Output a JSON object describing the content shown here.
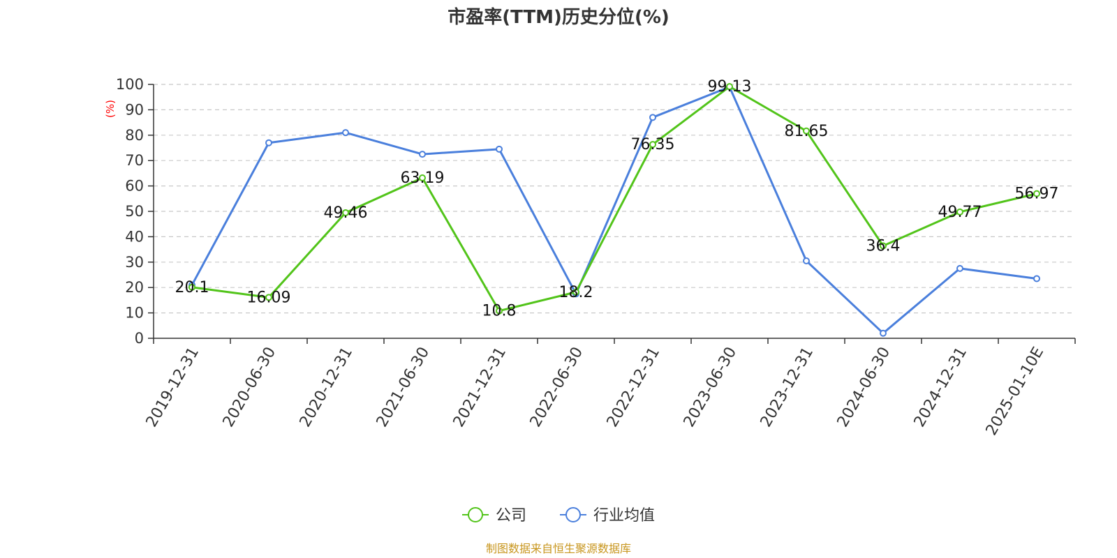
{
  "chart_data": {
    "type": "line",
    "title": "市盈率(TTM)历史分位(%)",
    "xlabel": "",
    "ylabel": "(%)",
    "ylim": [
      0,
      100
    ],
    "yticks": [
      0,
      10,
      20,
      30,
      40,
      50,
      60,
      70,
      80,
      90,
      100
    ],
    "grid": true,
    "legend_position": "bottom-center",
    "categories": [
      "2019-12-31",
      "2020-06-30",
      "2020-12-31",
      "2021-06-30",
      "2021-12-31",
      "2022-06-30",
      "2022-12-31",
      "2023-06-30",
      "2023-12-31",
      "2024-06-30",
      "2024-12-31",
      "2025-01-10E"
    ],
    "series": [
      {
        "name": "公司",
        "color": "#52c41a",
        "values": [
          20.1,
          16.09,
          49.46,
          63.19,
          10.8,
          18.2,
          76.35,
          99.13,
          81.65,
          36.4,
          49.77,
          56.97
        ],
        "labels": [
          "20.1",
          "16.09",
          "49.46",
          "63.19",
          "10.8",
          "18.2",
          "76.35",
          "99.13",
          "81.65",
          "36.4",
          "49.77",
          "56.97"
        ]
      },
      {
        "name": "行业均值",
        "color": "#4a7fdc",
        "values": [
          21.0,
          77.0,
          81.0,
          72.5,
          74.5,
          17.5,
          87.0,
          99.0,
          30.5,
          2.0,
          27.5,
          23.5
        ]
      }
    ]
  },
  "source": "制图数据来自恒生聚源数据库"
}
